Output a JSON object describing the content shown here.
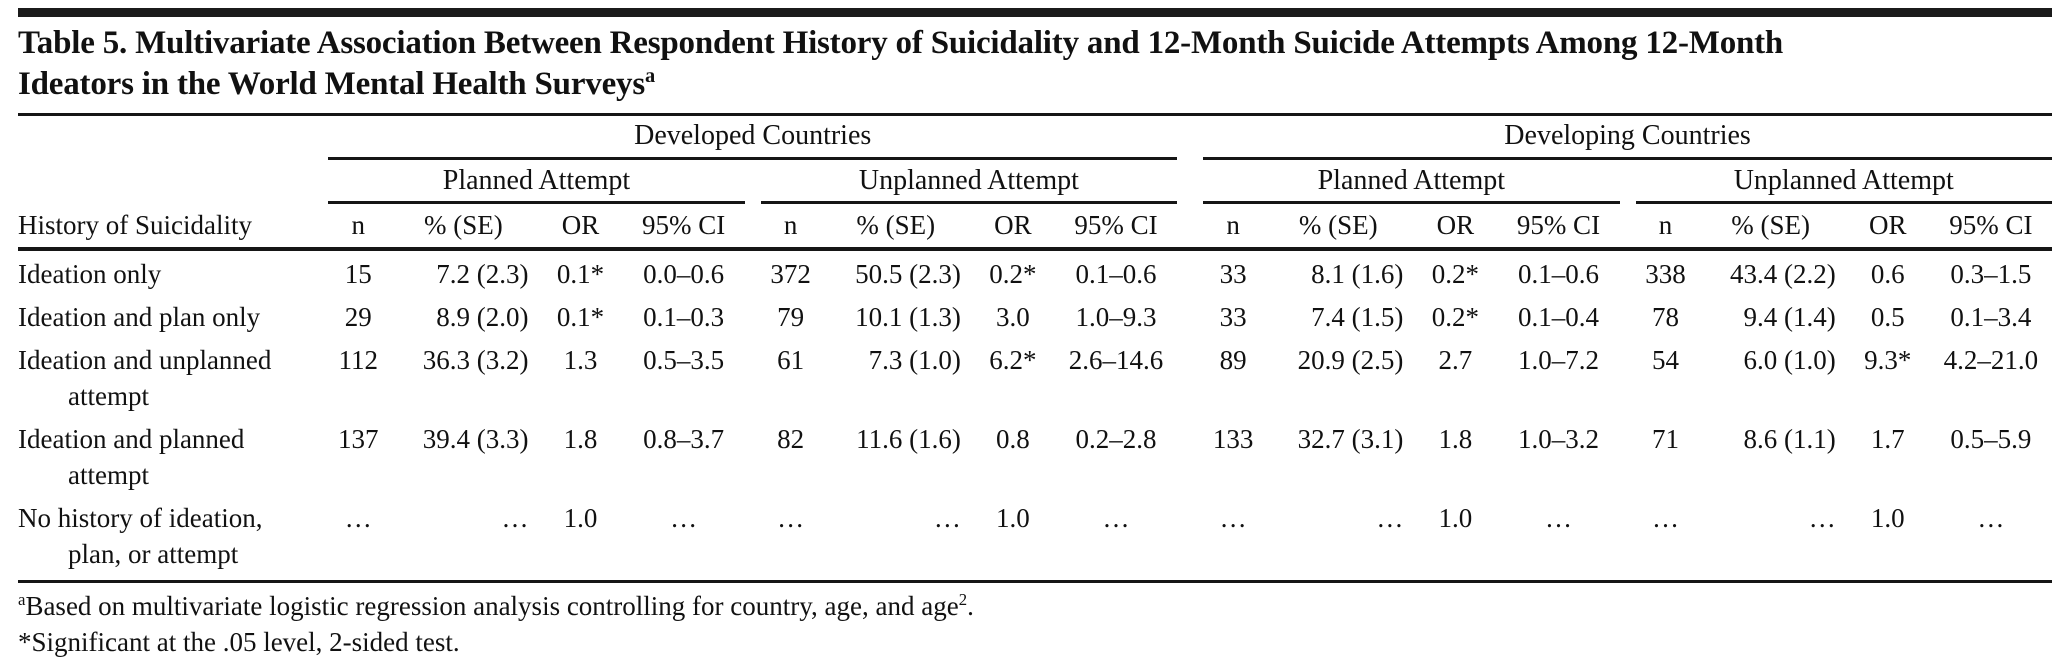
{
  "colors": {
    "background": "#ffffff",
    "text": "#111111",
    "rule": "#161616",
    "top_bar": "#1b1b1b"
  },
  "title": {
    "line1": "Table 5. Multivariate Association Between Respondent History of Suicidality and 12-Month Suicide Attempts Among 12-Month",
    "line2": "Ideators in the World Mental Health Surveys",
    "footnote_marker": "a"
  },
  "table": {
    "stub_header": "History of Suicidality",
    "country_groups": {
      "developed": "Developed Countries",
      "developing": "Developing Countries"
    },
    "attempt_groups": {
      "developed_planned": "Planned Attempt",
      "developed_unplanned": "Unplanned Attempt",
      "developing_planned": "Planned Attempt",
      "developing_unplanned": "Unplanned Attempt"
    },
    "stat_headers": [
      "n",
      "% (SE)",
      "OR",
      "95% CI"
    ],
    "rows": [
      {
        "label1": "Ideation only",
        "cells": [
          "15",
          "7.2 (2.3)",
          "0.1*",
          "0.0–0.6",
          "372",
          "50.5 (2.3)",
          "0.2*",
          "0.1–0.6",
          "33",
          "8.1 (1.6)",
          "0.2*",
          "0.1–0.6",
          "338",
          "43.4 (2.2)",
          "0.6",
          "0.3–1.5"
        ]
      },
      {
        "label1": "Ideation and plan only",
        "cells": [
          "29",
          "8.9 (2.0)",
          "0.1*",
          "0.1–0.3",
          "79",
          "10.1 (1.3)",
          "3.0",
          "1.0–9.3",
          "33",
          "7.4 (1.5)",
          "0.2*",
          "0.1–0.4",
          "78",
          "9.4 (1.4)",
          "0.5",
          "0.1–3.4"
        ]
      },
      {
        "label1": "Ideation and unplanned",
        "label2": "attempt",
        "cells": [
          "112",
          "36.3 (3.2)",
          "1.3",
          "0.5–3.5",
          "61",
          "7.3 (1.0)",
          "6.2*",
          "2.6–14.6",
          "89",
          "20.9 (2.5)",
          "2.7",
          "1.0–7.2",
          "54",
          "6.0 (1.0)",
          "9.3*",
          "4.2–21.0"
        ]
      },
      {
        "label1": "Ideation and planned",
        "label2": "attempt",
        "cells": [
          "137",
          "39.4 (3.3)",
          "1.8",
          "0.8–3.7",
          "82",
          "11.6 (1.6)",
          "0.8",
          "0.2–2.8",
          "133",
          "32.7 (3.1)",
          "1.8",
          "1.0–3.2",
          "71",
          "8.6 (1.1)",
          "1.7",
          "0.5–5.9"
        ]
      },
      {
        "label1": "No history of ideation,",
        "label2": "plan, or attempt",
        "cells": [
          "…",
          "…",
          "1.0",
          "…",
          "…",
          "…",
          "1.0",
          "…",
          "…",
          "…",
          "1.0",
          "…",
          "…",
          "…",
          "1.0",
          "…"
        ]
      }
    ]
  },
  "footnotes": {
    "a_marker": "a",
    "a_text": "Based on multivariate logistic regression analysis controlling for country, age, and age",
    "a_sup": "2",
    "a_tail": ".",
    "significance": "*Significant at the .05 level, 2-sided test."
  }
}
